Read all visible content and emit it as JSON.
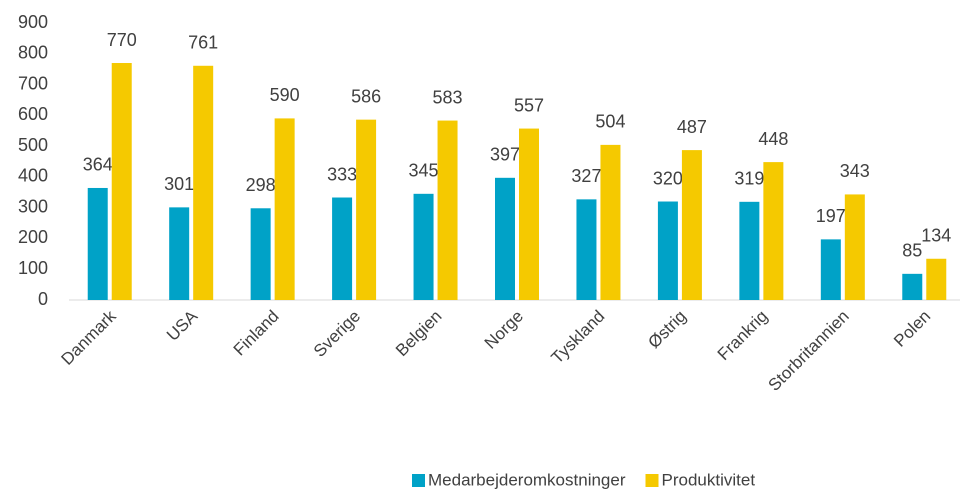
{
  "chart_data": {
    "type": "bar",
    "categories": [
      "Danmark",
      "USA",
      "Finland",
      "Sverige",
      "Belgien",
      "Norge",
      "Tyskland",
      "Østrig",
      "Frankrig",
      "Storbritannien",
      "Polen"
    ],
    "series": [
      {
        "name": "Medarbejderomkostninger",
        "color": "#00a2c7",
        "values": [
          364,
          301,
          298,
          333,
          345,
          397,
          327,
          320,
          319,
          197,
          85
        ]
      },
      {
        "name": "Produktivitet",
        "color": "#f5c900",
        "values": [
          770,
          761,
          590,
          586,
          583,
          557,
          504,
          487,
          448,
          343,
          134
        ]
      }
    ],
    "ylim": [
      0,
      900
    ],
    "yticks": [
      0,
      100,
      200,
      300,
      400,
      500,
      600,
      700,
      800,
      900
    ],
    "grid": false,
    "legend": "bottom"
  }
}
